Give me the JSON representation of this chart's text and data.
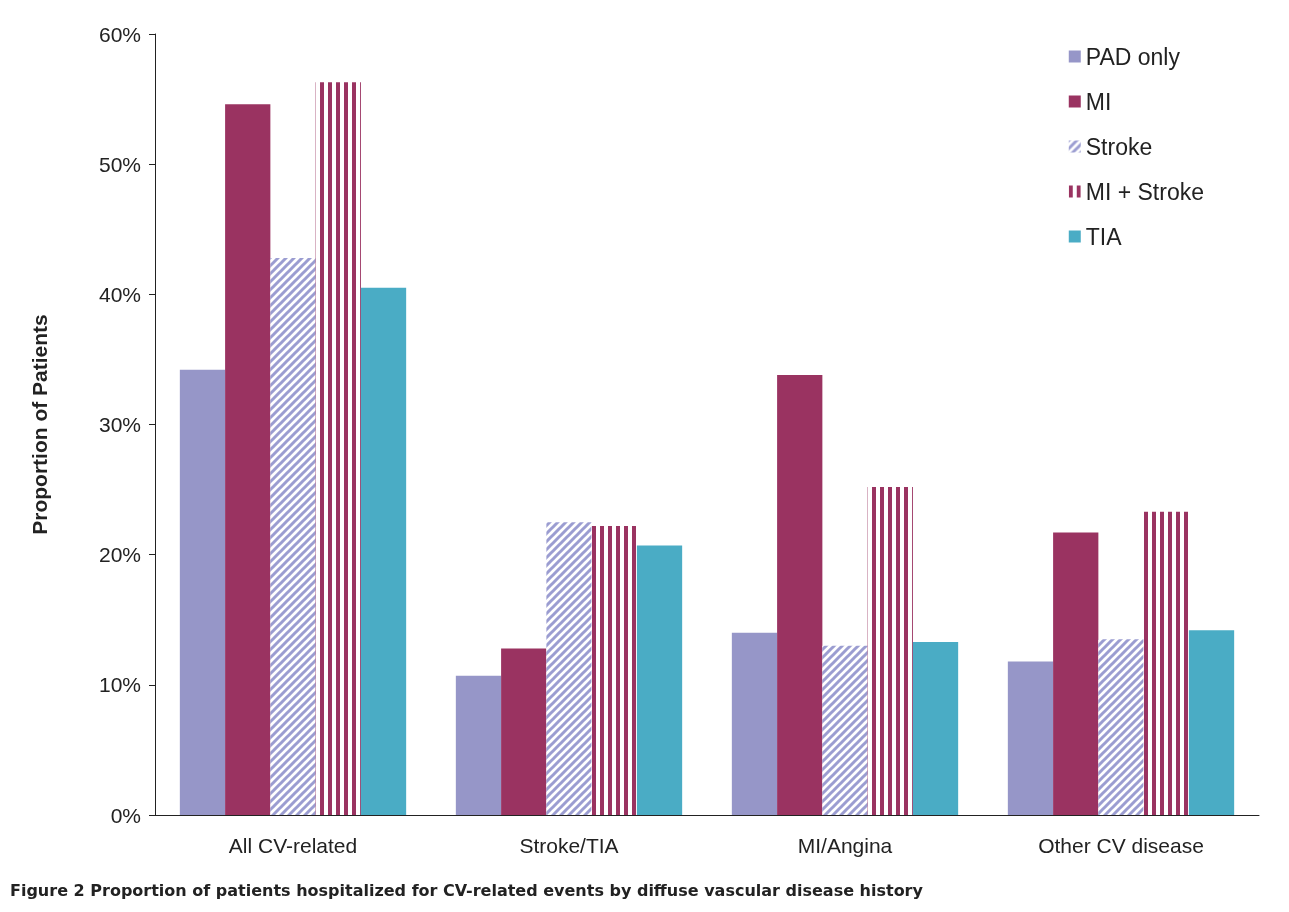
{
  "chart_data": {
    "type": "bar",
    "ylabel": "Proportion of Patients",
    "annotations": [
      "Figure 2 Proportion of patients hospitalized for CV-related events by diffuse vascular disease history"
    ],
    "categories": [
      "All CV-related",
      "Stroke/TIA",
      "MI/Angina",
      "Other CV disease"
    ],
    "series": [
      {
        "name": "PAD only",
        "color": "#9696c8",
        "values": [
          34.2,
          10.7,
          14.0,
          11.8
        ]
      },
      {
        "name": "MI",
        "color": "#9a3361",
        "values": [
          54.6,
          12.8,
          33.8,
          21.7
        ]
      },
      {
        "name": "Stroke",
        "color": "#9b9dd1",
        "values": [
          42.8,
          22.5,
          13.0,
          13.5
        ]
      },
      {
        "name": "MI + Stroke",
        "color": "#9a3361",
        "values": [
          56.3,
          22.2,
          25.2,
          23.3
        ]
      },
      {
        "name": "TIA",
        "color": "#4aacc5",
        "values": [
          40.5,
          20.7,
          13.3,
          14.2
        ]
      }
    ],
    "ylim": [
      0,
      60
    ],
    "yticks": [
      {
        "value": 0,
        "label": "0%"
      },
      {
        "value": 10,
        "label": "10%"
      },
      {
        "value": 20,
        "label": "20%"
      },
      {
        "value": 30,
        "label": "30%"
      },
      {
        "value": 40,
        "label": "40%"
      },
      {
        "value": 50,
        "label": "50%"
      },
      {
        "value": 60,
        "label": "60%"
      }
    ],
    "grid": false,
    "legend": "top right"
  }
}
